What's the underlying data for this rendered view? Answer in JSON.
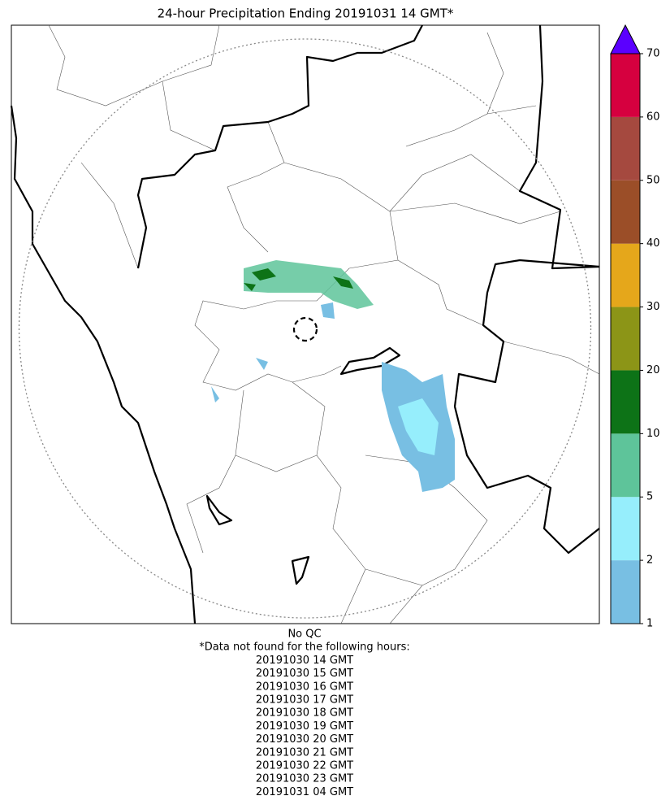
{
  "title": "24-hour Precipitation Ending 20191031 14 GMT*",
  "colorbar": {
    "levels": [
      1,
      2,
      5,
      10,
      20,
      30,
      40,
      50,
      60,
      70
    ],
    "colors": [
      "#78bfe3",
      "#96eefc",
      "#5ec49a",
      "#0d7317",
      "#8c9517",
      "#e5a71b",
      "#9b4e28",
      "#a5493f",
      "#d6003f"
    ],
    "extend_color": "#5b00ff"
  },
  "notes": [
    "No QC",
    "*Data not found for the following hours:",
    "20191030 14 GMT",
    "20191030 15 GMT",
    "20191030 16 GMT",
    "20191030 17 GMT",
    "20191030 18 GMT",
    "20191030 19 GMT",
    "20191030 20 GMT",
    "20191030 21 GMT",
    "20191030 22 GMT",
    "20191030 23 GMT",
    "20191031 04 GMT"
  ]
}
